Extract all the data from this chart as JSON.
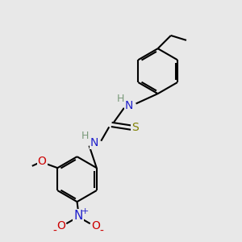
{
  "bg_color": "#e8e8e8",
  "bond_color": "#000000",
  "bond_width": 1.5,
  "atom_colors": {
    "N": "#2020cc",
    "S": "#808000",
    "O": "#cc0000",
    "H": "#7a9a7a"
  },
  "font_size_atom": 10,
  "fig_w": 3.0,
  "fig_h": 3.0,
  "dpi": 100
}
